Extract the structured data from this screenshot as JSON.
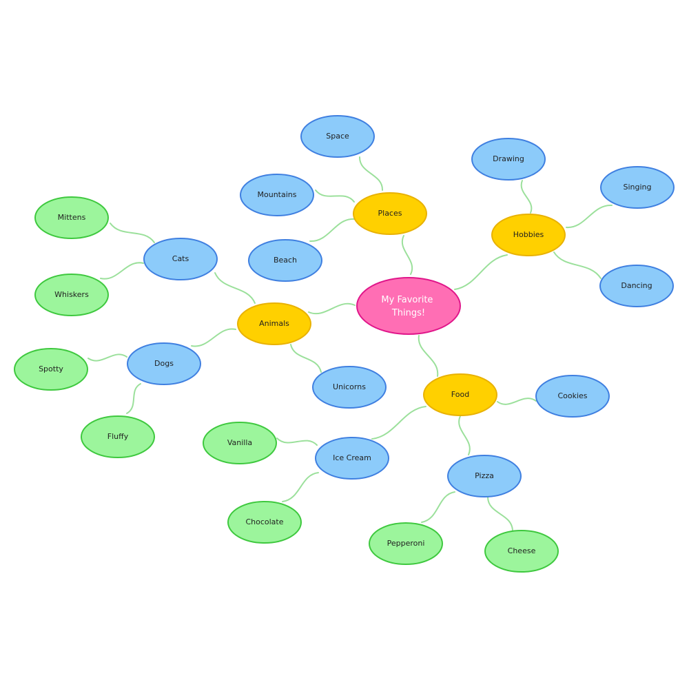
{
  "colors": {
    "central_fill": "#ff6eb4",
    "central_stroke": "#e0168a",
    "category_fill": "#ffd000",
    "category_stroke": "#e8b100",
    "sub_fill": "#8ccbfa",
    "sub_stroke": "#3f7fe0",
    "leaf_fill": "#9cf59c",
    "leaf_stroke": "#3ec83e",
    "connector": "#9be09b"
  },
  "central": {
    "lines": [
      "My Favorite",
      "Things!"
    ]
  },
  "categories": {
    "places": "Places",
    "hobbies": "Hobbies",
    "animals": "Animals",
    "food": "Food"
  },
  "subtopics": {
    "space": "Space",
    "mountains": "Mountains",
    "beach": "Beach",
    "drawing": "Drawing",
    "singing": "Singing",
    "dancing": "Dancing",
    "cats": "Cats",
    "dogs": "Dogs",
    "unicorns": "Unicorns",
    "ice_cream": "Ice Cream",
    "pizza": "Pizza",
    "cookies": "Cookies"
  },
  "leaves": {
    "mittens": "Mittens",
    "whiskers": "Whiskers",
    "spotty": "Spotty",
    "fluffy": "Fluffy",
    "vanilla": "Vanilla",
    "chocolate": "Chocolate",
    "pepperoni": "Pepperoni",
    "cheese": "Cheese"
  }
}
